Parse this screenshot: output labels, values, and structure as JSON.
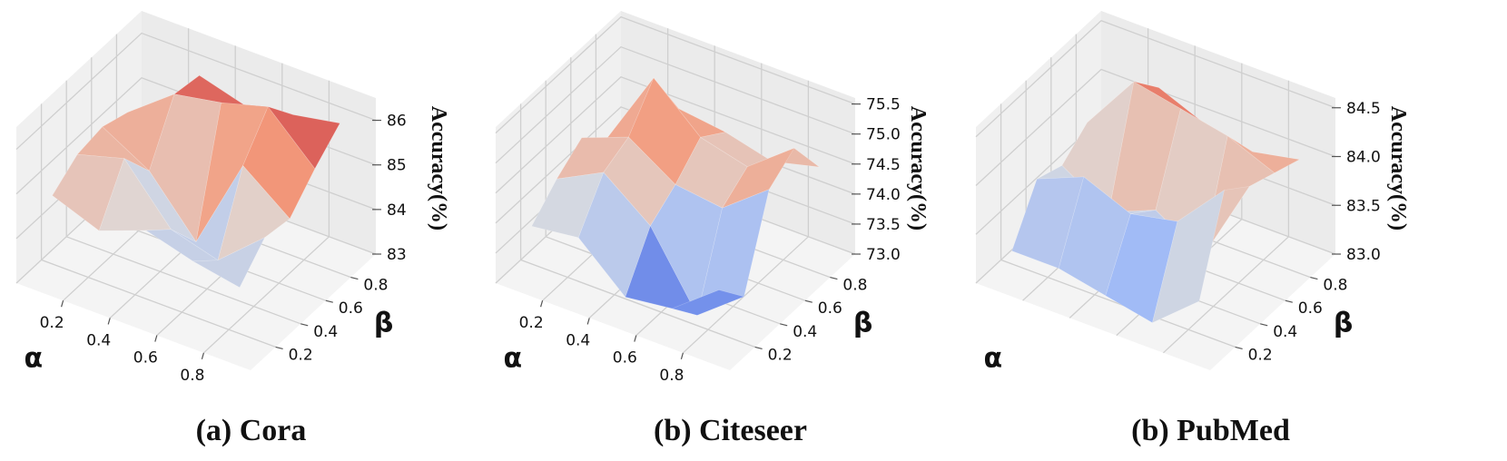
{
  "chart_data": [
    {
      "type": "surface3d",
      "title": "(a) Cora",
      "xlabel": "α",
      "ylabel": "β",
      "zlabel": "Accuracy(%)",
      "x_ticks": [
        "0.2",
        "0.4",
        "0.6",
        "0.8"
      ],
      "y_ticks": [
        "0.2",
        "0.4",
        "0.6",
        "0.8"
      ],
      "z_ticks": [
        "83",
        "84",
        "85",
        "86"
      ],
      "x": [
        0.1,
        0.3,
        0.5,
        0.7,
        0.9
      ],
      "y": [
        0.1,
        0.3,
        0.5,
        0.7,
        0.9
      ],
      "zlim": [
        83,
        86.5
      ],
      "z": [
        [
          84.9,
          85.3,
          85.4,
          85.2,
          84.7
        ],
        [
          84.5,
          85.6,
          84.8,
          86.0,
          85.9
        ],
        [
          84.9,
          84.4,
          83.6,
          86.2,
          85.6
        ],
        [
          84.6,
          84.1,
          85.7,
          86.5,
          85.8
        ],
        [
          84.4,
          85.0,
          84.9,
          85.5,
          86.0
        ]
      ],
      "colormap": [
        "#3b4cc0",
        "#8db0fe",
        "#dddddd",
        "#f49a7b",
        "#b40426"
      ]
    },
    {
      "type": "surface3d",
      "title": "(b) Citeseer",
      "xlabel": "α",
      "ylabel": "β",
      "zlabel": "Accuracy(%)",
      "x_ticks": [
        "0.2",
        "0.4",
        "0.6",
        "0.8"
      ],
      "y_ticks": [
        "0.2",
        "0.4",
        "0.6",
        "0.8"
      ],
      "z_ticks": [
        "73.0",
        "73.5",
        "74.0",
        "74.5",
        "75.0",
        "75.5"
      ],
      "x": [
        0.1,
        0.3,
        0.5,
        0.7,
        0.9
      ],
      "y": [
        0.1,
        0.3,
        0.5,
        0.7,
        0.9
      ],
      "zlim": [
        73.0,
        75.6
      ],
      "z": [
        [
          73.9,
          74.3,
          74.6,
          74.2,
          73.9
        ],
        [
          74.0,
          74.7,
          74.9,
          75.5,
          74.6
        ],
        [
          73.3,
          74.1,
          74.4,
          74.8,
          74.5
        ],
        [
          73.4,
          72.9,
          74.3,
          74.6,
          74.3
        ],
        [
          74.0,
          73.5,
          74.9,
          75.2,
          74.5
        ]
      ],
      "colormap": [
        "#3b4cc0",
        "#8db0fe",
        "#dddddd",
        "#f49a7b",
        "#b40426"
      ]
    },
    {
      "type": "surface3d",
      "title": "(b) PubMed",
      "xlabel": "α",
      "ylabel": "β",
      "zlabel": "Accuracy(%)",
      "x_ticks": [],
      "y_ticks": [
        "0.2",
        "0.4",
        "0.6",
        "0.8"
      ],
      "z_ticks": [
        "83.0",
        "83.5",
        "84.0",
        "84.5"
      ],
      "x": [
        0.1,
        0.3,
        0.5,
        0.7,
        0.9
      ],
      "y": [
        0.1,
        0.3,
        0.5,
        0.7,
        0.9
      ],
      "zlim": [
        83.0,
        84.6
      ],
      "z": [
        [
          83.3,
          83.8,
          83.7,
          83.9,
          83.7
        ],
        [
          83.3,
          84.0,
          83.4,
          84.5,
          84.2
        ],
        [
          83.2,
          83.8,
          83.6,
          84.4,
          84.0
        ],
        [
          83.1,
          83.9,
          83.3,
          84.3,
          83.9
        ],
        [
          83.5,
          84.4,
          84.2,
          84.1,
          84.0
        ]
      ],
      "colormap": [
        "#3b4cc0",
        "#8db0fe",
        "#dddddd",
        "#f49a7b",
        "#b40426"
      ]
    }
  ]
}
